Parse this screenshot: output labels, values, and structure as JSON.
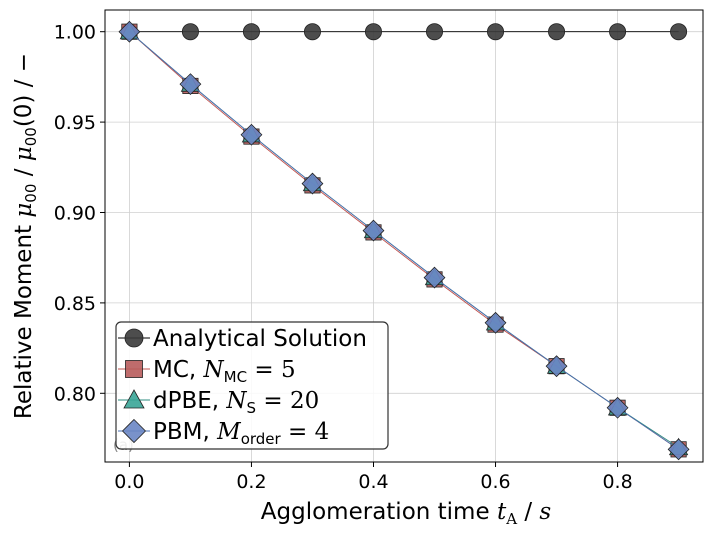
{
  "chart_data": {
    "type": "line",
    "xlabel_text": "Agglomeration time ",
    "xlabel_math": "t",
    "xlabel_sub": "A",
    "xlabel_unit_sep": " / ",
    "xlabel_unit": "s",
    "ylabel_text": "Relative Moment ",
    "ylabel_math1": "μ",
    "ylabel_sub1": "00",
    "ylabel_mid": " / ",
    "ylabel_math2": "μ",
    "ylabel_sub2": "00",
    "ylabel_arg": "(0)",
    "ylabel_unit": " / −",
    "xlim": [
      -0.04,
      0.94
    ],
    "ylim": [
      0.762,
      1.012
    ],
    "xticks": [
      0.0,
      0.2,
      0.4,
      0.6,
      0.8
    ],
    "xtick_labels": [
      "0.0",
      "0.2",
      "0.4",
      "0.6",
      "0.8"
    ],
    "yticks": [
      0.8,
      0.85,
      0.9,
      0.95,
      1.0
    ],
    "ytick_labels": [
      "0.80",
      "0.85",
      "0.90",
      "0.95",
      "1.00"
    ],
    "grid": true,
    "legend_position": "lower-left",
    "x": [
      0.0,
      0.1,
      0.2,
      0.3,
      0.4,
      0.5,
      0.6,
      0.7,
      0.8,
      0.9
    ],
    "series": [
      {
        "name": "Analytical Solution",
        "legend_text": "Analytical Solution",
        "marker": "circle",
        "fill": "#3a3a3a",
        "line": "#000000",
        "values": [
          1.0,
          1.0,
          1.0,
          1.0,
          1.0,
          1.0,
          1.0,
          1.0,
          1.0,
          1.0
        ]
      },
      {
        "name": "MC",
        "legend_text": "MC, ",
        "legend_math": "N",
        "legend_sub": "MC",
        "legend_eq": " = 5",
        "marker": "square",
        "fill": "#b85c5c",
        "line": "#c0504d",
        "values": [
          1.0,
          0.97,
          0.942,
          0.915,
          0.889,
          0.863,
          0.838,
          0.815,
          0.792,
          0.769
        ]
      },
      {
        "name": "dPBE",
        "legend_text": "dPBE, ",
        "legend_math": "N",
        "legend_sub": "S",
        "legend_eq": " = 20",
        "marker": "triangle",
        "fill": "#3aa597",
        "line": "#2e8b7f",
        "values": [
          1.0,
          0.971,
          0.943,
          0.916,
          0.89,
          0.864,
          0.839,
          0.815,
          0.792,
          0.77
        ]
      },
      {
        "name": "PBM",
        "legend_text": "PBM, ",
        "legend_math": "M",
        "legend_sub": "order",
        "legend_eq": " = 4",
        "marker": "diamond",
        "fill": "#6a86c4",
        "line": "#4a6fb0",
        "values": [
          1.0,
          0.971,
          0.943,
          0.916,
          0.89,
          0.864,
          0.839,
          0.815,
          0.792,
          0.769
        ]
      }
    ],
    "panel_label": "(a)"
  }
}
